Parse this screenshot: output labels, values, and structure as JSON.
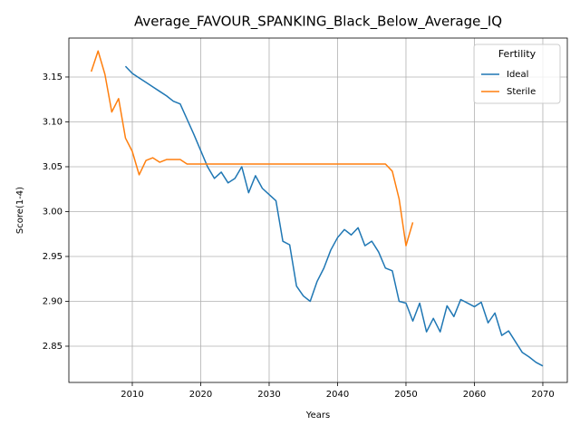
{
  "chart_data": {
    "type": "line",
    "title": "Average_FAVOUR_SPANKING_Black_Below_Average_IQ",
    "x_label": "Years",
    "y_label": "Score(1-4)",
    "x": [
      2004,
      2005,
      2006,
      2007,
      2008,
      2009,
      2010,
      2011,
      2012,
      2013,
      2014,
      2015,
      2016,
      2017,
      2018,
      2019,
      2020,
      2021,
      2022,
      2023,
      2024,
      2025,
      2026,
      2027,
      2028,
      2029,
      2030,
      2031,
      2032,
      2033,
      2034,
      2035,
      2036,
      2037,
      2038,
      2039,
      2040,
      2041,
      2042,
      2043,
      2044,
      2045,
      2046,
      2047,
      2048,
      2049,
      2050,
      2051,
      2052,
      2053,
      2054,
      2055,
      2056,
      2057,
      2058,
      2059,
      2060,
      2061,
      2062,
      2063,
      2064,
      2065,
      2066,
      2067,
      2068,
      2069,
      2070
    ],
    "series": [
      {
        "name": "Ideal",
        "color": "#1f77b4",
        "values": [
          null,
          null,
          null,
          null,
          null,
          3.162,
          3.154,
          3.149,
          3.144,
          3.139,
          3.134,
          3.129,
          3.123,
          3.12,
          3.103,
          3.086,
          3.068,
          3.05,
          3.037,
          3.044,
          3.032,
          3.037,
          3.05,
          3.021,
          3.04,
          3.026,
          3.019,
          3.012,
          2.967,
          2.963,
          2.917,
          2.906,
          2.9,
          2.922,
          2.937,
          2.957,
          2.971,
          2.98,
          2.974,
          2.982,
          2.962,
          2.967,
          2.955,
          2.937,
          2.934,
          2.9,
          2.898,
          2.878,
          2.898,
          2.866,
          2.881,
          2.866,
          2.895,
          2.883,
          2.902,
          2.898,
          2.894,
          2.899,
          2.876,
          2.887,
          2.862,
          2.867,
          2.855,
          2.843,
          2.838,
          2.832,
          2.828
        ]
      },
      {
        "name": "Sterile",
        "color": "#ff7f0e",
        "values": [
          3.156,
          3.179,
          3.153,
          3.111,
          3.126,
          3.082,
          3.067,
          3.041,
          3.057,
          3.06,
          3.055,
          3.058,
          3.058,
          3.058,
          3.053,
          3.053,
          3.053,
          3.053,
          3.053,
          3.053,
          3.053,
          3.053,
          3.053,
          3.053,
          3.053,
          3.053,
          3.053,
          3.053,
          3.053,
          3.053,
          3.053,
          3.053,
          3.053,
          3.053,
          3.053,
          3.053,
          3.053,
          3.053,
          3.053,
          3.053,
          3.053,
          3.053,
          3.053,
          3.053,
          3.045,
          3.014,
          2.962,
          2.988,
          null,
          null,
          null,
          null,
          null,
          null,
          null,
          null,
          null,
          null,
          null,
          null,
          null,
          null,
          null,
          null,
          null,
          null,
          null
        ]
      }
    ],
    "xlim": [
      2000.73,
      2073.58
    ],
    "ylim": [
      2.8096,
      3.1934
    ],
    "xticks": [
      2010,
      2020,
      2030,
      2040,
      2050,
      2060,
      2070
    ],
    "yticks": [
      2.85,
      {
        "value": 2.9,
        "label": "2.90"
      },
      2.95,
      {
        "value": 3.0,
        "label": "3.00"
      },
      3.05,
      {
        "value": 3.1,
        "label": "3.10"
      },
      3.15
    ],
    "grid": true,
    "legend_title": "Fertility",
    "legend_position": "upper-right"
  }
}
